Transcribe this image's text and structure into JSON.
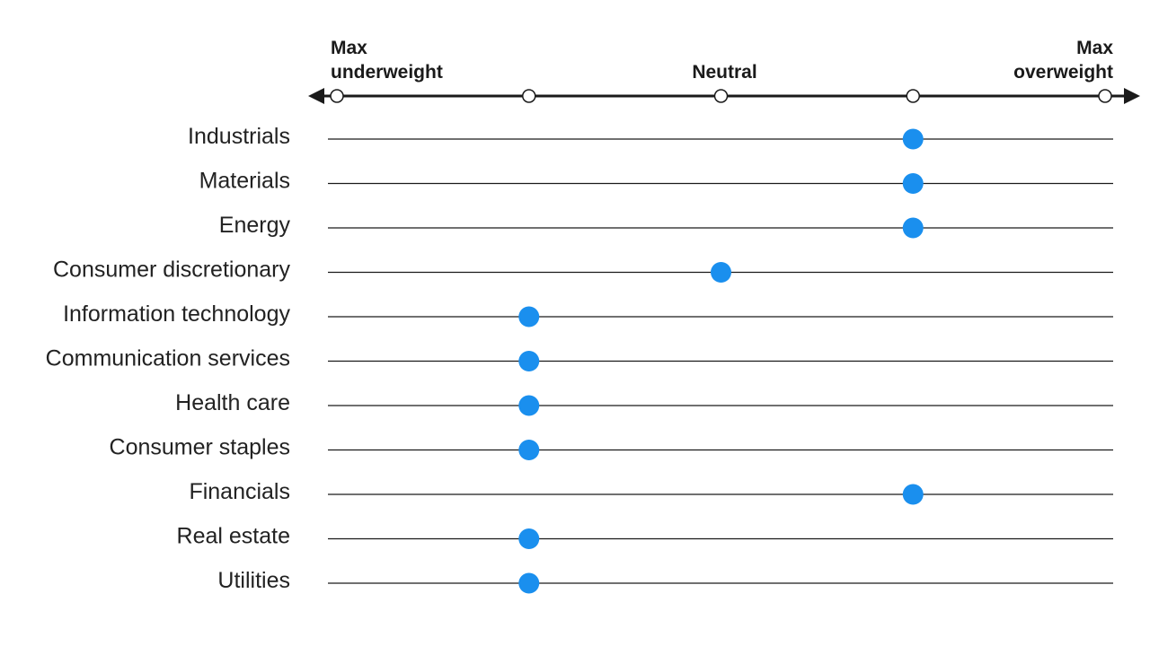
{
  "chart_data": {
    "type": "scatter",
    "title": "",
    "scale": {
      "min": -2,
      "max": 2,
      "ticks": [
        -2,
        -1,
        0,
        1,
        2
      ],
      "labels": [
        {
          "value": -2,
          "lines": [
            "Max",
            "underweight"
          ],
          "align": "left"
        },
        {
          "value": 0,
          "lines": [
            "Neutral"
          ],
          "align": "center"
        },
        {
          "value": 2,
          "lines": [
            "Max",
            "overweight"
          ],
          "align": "right"
        }
      ]
    },
    "categories": [
      "Industrials",
      "Materials",
      "Energy",
      "Consumer discretionary",
      "Information technology",
      "Communication services",
      "Health care",
      "Consumer staples",
      "Financials",
      "Real estate",
      "Utilities"
    ],
    "values": [
      1,
      1,
      1,
      0,
      -1,
      -1,
      -1,
      -1,
      1,
      -1,
      -1
    ],
    "colors": {
      "marker": "#1a8fee",
      "line": "#1a1a1a",
      "text": "#222222"
    }
  }
}
